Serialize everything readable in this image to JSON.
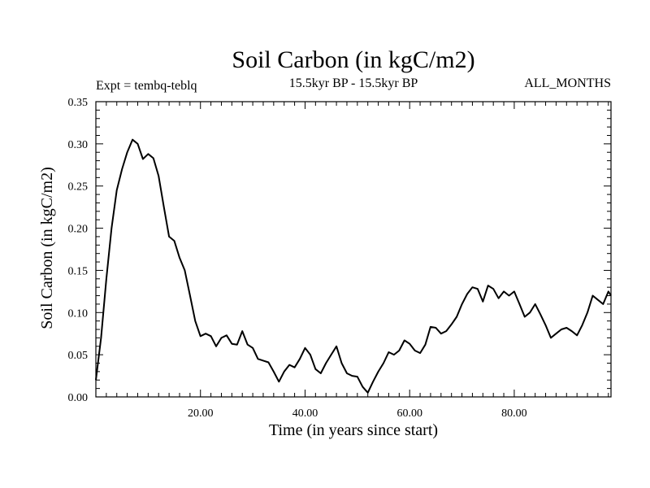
{
  "chart_data": {
    "type": "line",
    "title": "Soil Carbon (in kgC/m2)",
    "subtitle": "15.5kyr BP - 15.5kyr BP",
    "left_note": "Expt = tembq-teblq",
    "right_note": "ALL_MONTHS",
    "xlabel": "Time (in years since start)",
    "ylabel": "Soil Carbon (in kgC/m2)",
    "xlim": [
      0,
      98.5
    ],
    "ylim": [
      0,
      0.35
    ],
    "xticks": [
      20,
      40,
      60,
      80
    ],
    "xtick_labels": [
      "20.00",
      "40.00",
      "60.00",
      "80.00"
    ],
    "yticks": [
      0,
      0.05,
      0.1,
      0.15,
      0.2,
      0.25,
      0.3,
      0.35
    ],
    "ytick_labels": [
      "0.00",
      "0.05",
      "0.10",
      "0.15",
      "0.20",
      "0.25",
      "0.30",
      "0.35"
    ],
    "grid": false,
    "series": [
      {
        "color": "#000000",
        "x": [
          0,
          1,
          2,
          3,
          4,
          5,
          6,
          7,
          8,
          9,
          10,
          11,
          12,
          13,
          14,
          15,
          16,
          17,
          18,
          19,
          20,
          21,
          22,
          23,
          24,
          25,
          26,
          27,
          28,
          29,
          30,
          31,
          32,
          33,
          34,
          35,
          36,
          37,
          38,
          39,
          40,
          41,
          42,
          43,
          44,
          45,
          46,
          47,
          48,
          49,
          50,
          51,
          52,
          53,
          54,
          55,
          56,
          57,
          58,
          59,
          60,
          61,
          62,
          63,
          64,
          65,
          66,
          67,
          68,
          69,
          70,
          71,
          72,
          73,
          74,
          75,
          76,
          77,
          78,
          79,
          80,
          81,
          82,
          83,
          84,
          85,
          86,
          87,
          88,
          89,
          90,
          91,
          92,
          93,
          94,
          95,
          96,
          97,
          98,
          98.5
        ],
        "y": [
          0.02,
          0.07,
          0.14,
          0.2,
          0.245,
          0.27,
          0.29,
          0.305,
          0.3,
          0.282,
          0.288,
          0.283,
          0.262,
          0.225,
          0.19,
          0.185,
          0.165,
          0.15,
          0.12,
          0.09,
          0.072,
          0.075,
          0.072,
          0.06,
          0.07,
          0.073,
          0.063,
          0.062,
          0.078,
          0.062,
          0.058,
          0.045,
          0.043,
          0.041,
          0.03,
          0.018,
          0.03,
          0.038,
          0.035,
          0.045,
          0.058,
          0.05,
          0.033,
          0.028,
          0.04,
          0.05,
          0.06,
          0.04,
          0.028,
          0.025,
          0.024,
          0.012,
          0.005,
          0.018,
          0.03,
          0.04,
          0.053,
          0.05,
          0.055,
          0.067,
          0.063,
          0.055,
          0.052,
          0.062,
          0.083,
          0.082,
          0.075,
          0.078,
          0.086,
          0.095,
          0.11,
          0.122,
          0.13,
          0.128,
          0.113,
          0.132,
          0.128,
          0.117,
          0.125,
          0.12,
          0.125,
          0.11,
          0.095,
          0.1,
          0.11,
          0.098,
          0.085,
          0.07,
          0.075,
          0.08,
          0.082,
          0.078,
          0.073,
          0.085,
          0.1,
          0.12,
          0.115,
          0.11,
          0.125,
          0.12
        ]
      }
    ]
  }
}
